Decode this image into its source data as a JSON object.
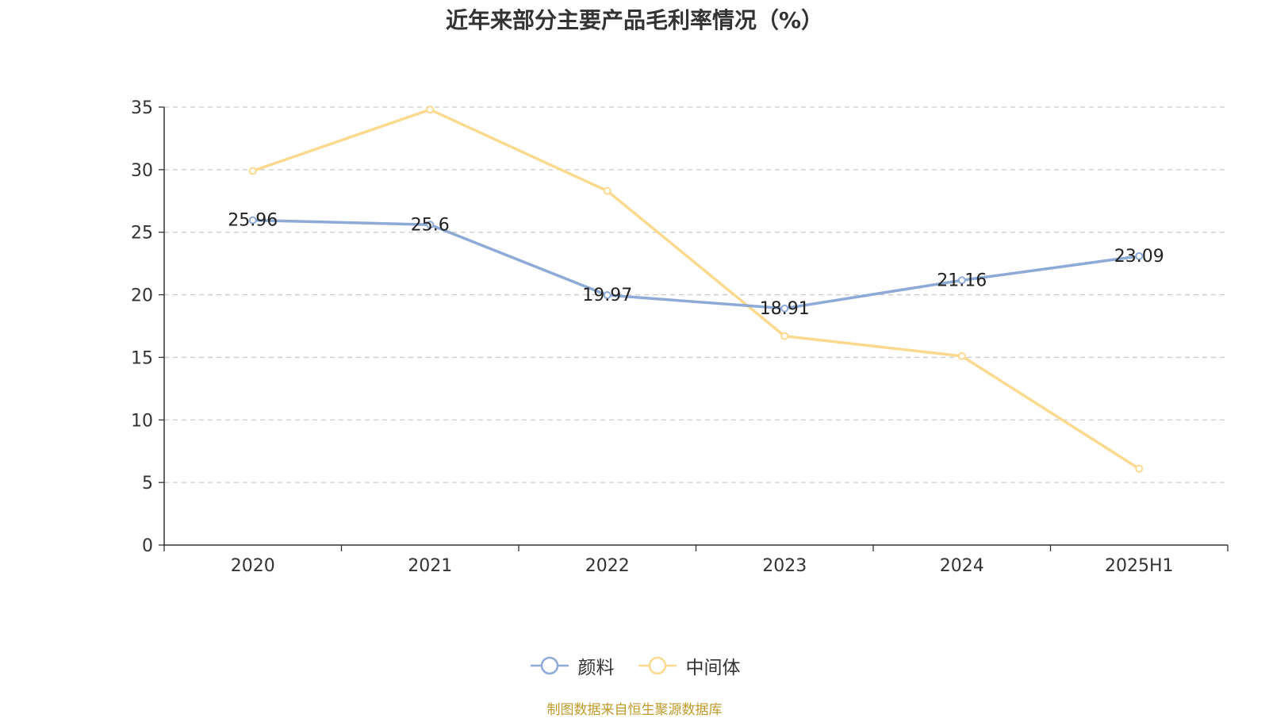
{
  "chart_data": {
    "type": "line",
    "title": "近年来部分主要产品毛利率情况（%）",
    "categories": [
      "2020",
      "2021",
      "2022",
      "2023",
      "2024",
      "2025H1"
    ],
    "series": [
      {
        "name": "颜料",
        "values": [
          25.96,
          25.6,
          19.97,
          18.91,
          21.16,
          23.09
        ],
        "color": "#8eaad6",
        "show_labels": true
      },
      {
        "name": "中间体",
        "values": [
          29.9,
          34.8,
          28.3,
          16.7,
          15.1,
          6.1
        ],
        "color": "#fbd98f",
        "show_labels": false
      }
    ],
    "yticks": [
      "0",
      "5",
      "10",
      "15",
      "20",
      "25",
      "30",
      "35"
    ],
    "ylim": [
      0,
      35
    ],
    "grid": true,
    "legend_position": "bottom-center"
  },
  "source_note": "制图数据来自恒生聚源数据库"
}
